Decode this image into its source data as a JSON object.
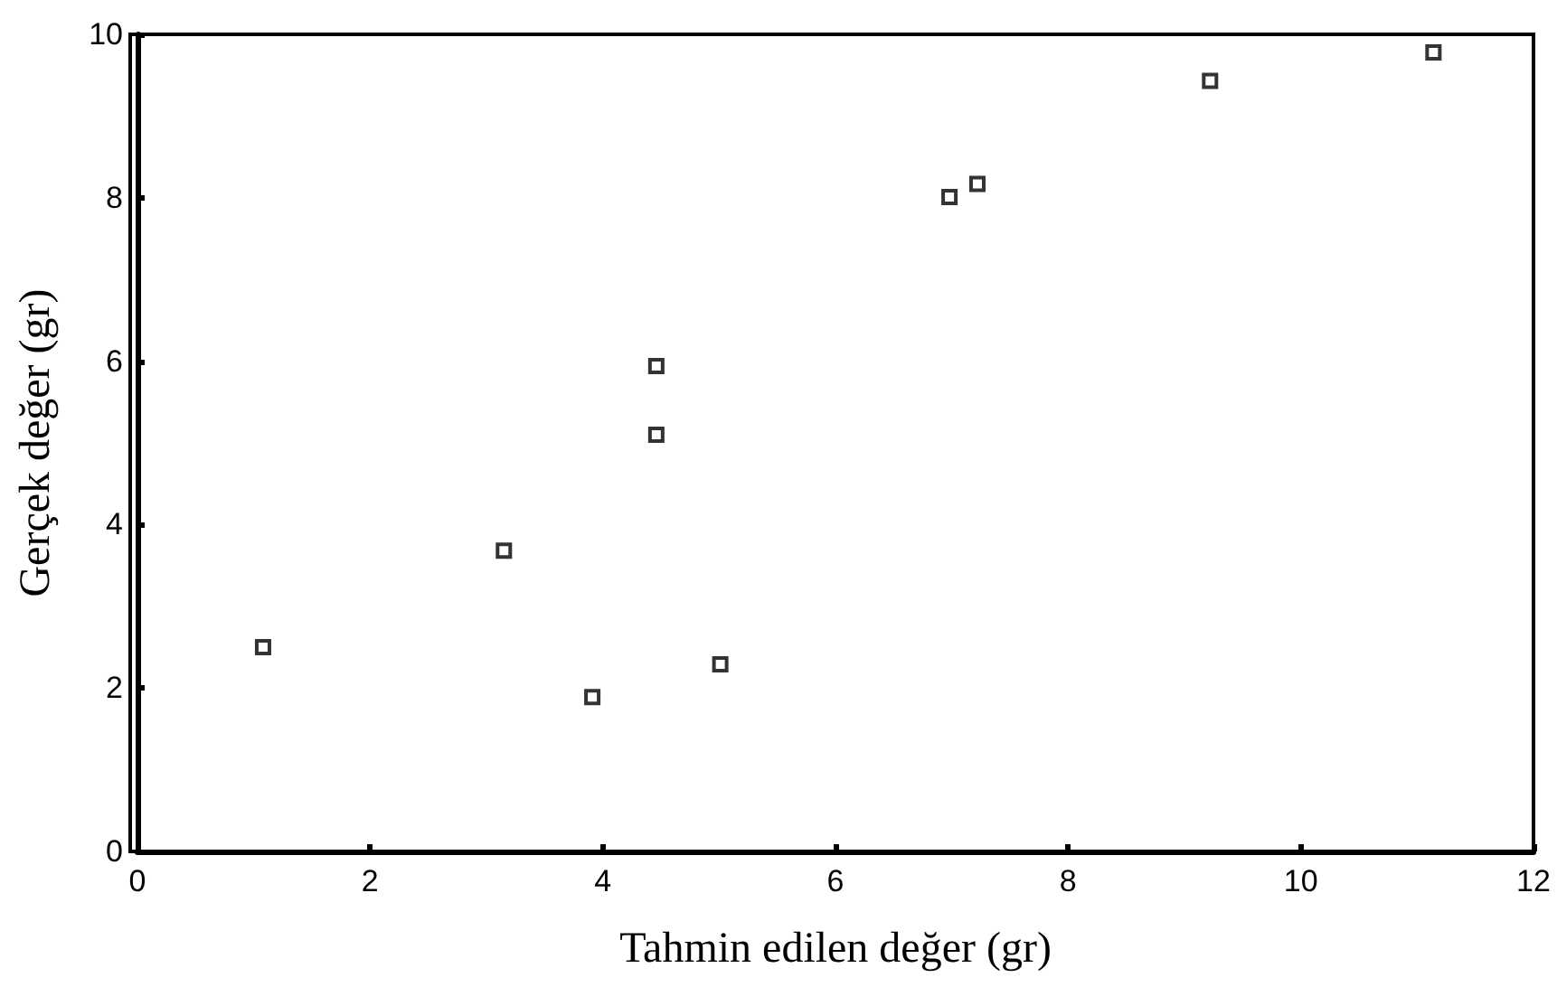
{
  "chart_data": {
    "type": "scatter",
    "xlabel": "Tahmin edilen değer (gr)",
    "ylabel": "Gerçek değer (gr)",
    "x": [
      1.08,
      3.15,
      3.91,
      5.01,
      4.46,
      4.46,
      6.98,
      7.22,
      9.22,
      11.14
    ],
    "series": [
      {
        "color": "#000000",
        "values": [
          2.5,
          3.68,
          1.89,
          2.29,
          5.94,
          5.1,
          8.01,
          8.17,
          9.43,
          9.78
        ]
      }
    ],
    "xlim": [
      0,
      12
    ],
    "xticks": [
      0,
      2,
      4,
      6,
      8,
      10,
      12
    ],
    "ylim": [
      0,
      10
    ],
    "yticks": [
      0,
      2,
      4,
      6,
      8,
      10
    ],
    "grid": false,
    "marker": "square"
  }
}
